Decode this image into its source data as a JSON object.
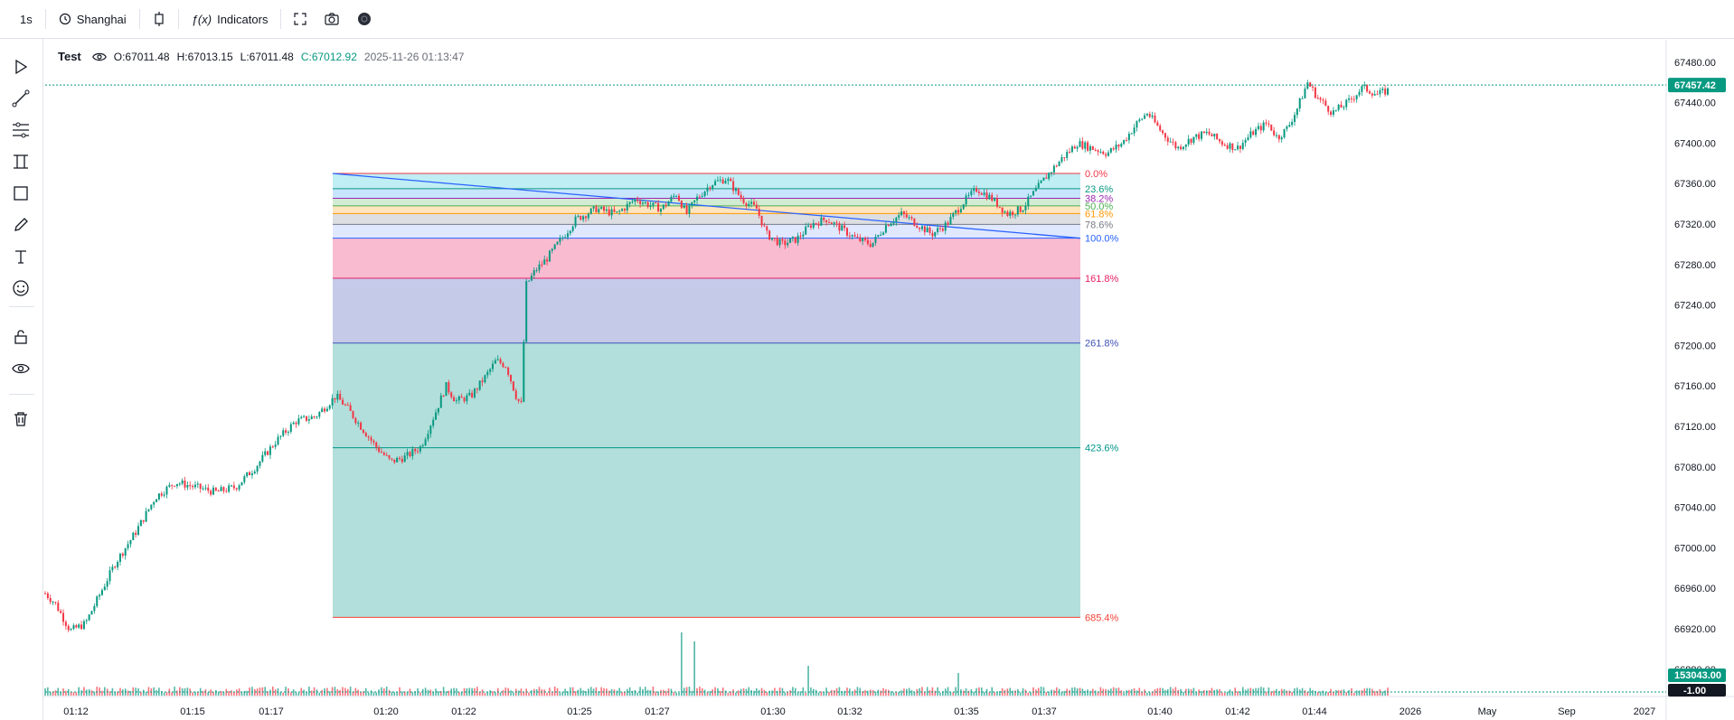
{
  "toolbar": {
    "interval": "1s",
    "timezone": "Shanghai",
    "indicators_label": "Indicators",
    "fx_label": "ƒ(x)"
  },
  "legend": {
    "symbol": "Test",
    "open": "O:67011.48",
    "high": "H:67013.15",
    "low": "L:67011.48",
    "close": "C:67012.92",
    "timestamp": "2025-11-26 01:13:47"
  },
  "left_tools": [
    "cursor-tool",
    "trend-line-tool",
    "fib-tool",
    "pattern-tool",
    "rectangle-tool",
    "brush-tool",
    "text-tool",
    "emoji-tool",
    "lock-tool",
    "visibility-tool",
    "delete-tool"
  ],
  "chart_data": {
    "type": "candlestick",
    "y_axis": {
      "ylim": [
        66870,
        67495
      ],
      "ticks": [
        "67480.00",
        "67440.00",
        "67400.00",
        "67360.00",
        "67320.00",
        "67280.00",
        "67240.00",
        "67200.00",
        "67160.00",
        "67120.00",
        "67080.00",
        "67040.00",
        "67000.00",
        "66960.00",
        "66920.00",
        "66880.00"
      ]
    },
    "x_axis": {
      "ticks": [
        "01:12",
        "01:15",
        "01:17",
        "01:20",
        "01:22",
        "01:25",
        "01:27",
        "01:30",
        "01:32",
        "01:35",
        "01:37",
        "01:40",
        "01:42",
        "01:44",
        "2026",
        "May",
        "Sep",
        "2027"
      ]
    },
    "price_path": [
      [
        0,
        66955
      ],
      [
        2,
        66945
      ],
      [
        5,
        66918
      ],
      [
        8,
        66925
      ],
      [
        10,
        66945
      ],
      [
        14,
        66985
      ],
      [
        18,
        67015
      ],
      [
        22,
        67050
      ],
      [
        26,
        67065
      ],
      [
        30,
        67060
      ],
      [
        34,
        67055
      ],
      [
        38,
        67060
      ],
      [
        42,
        67080
      ],
      [
        46,
        67105
      ],
      [
        50,
        67125
      ],
      [
        54,
        67130
      ],
      [
        58,
        67150
      ],
      [
        60,
        67140
      ],
      [
        63,
        67120
      ],
      [
        66,
        67100
      ],
      [
        69,
        67085
      ],
      [
        72,
        67090
      ],
      [
        75,
        67100
      ],
      [
        78,
        67135
      ],
      [
        80,
        67160
      ],
      [
        82,
        67145
      ],
      [
        85,
        67150
      ],
      [
        88,
        67170
      ],
      [
        90,
        67185
      ],
      [
        92,
        67180
      ],
      [
        94,
        67150
      ],
      [
        95,
        67140
      ],
      [
        96,
        67260
      ],
      [
        98,
        67275
      ],
      [
        100,
        67285
      ],
      [
        103,
        67305
      ],
      [
        106,
        67325
      ],
      [
        110,
        67335
      ],
      [
        114,
        67330
      ],
      [
        118,
        67345
      ],
      [
        120,
        67340
      ],
      [
        123,
        67335
      ],
      [
        126,
        67350
      ],
      [
        128,
        67330
      ],
      [
        130,
        67345
      ],
      [
        133,
        67360
      ],
      [
        136,
        67365
      ],
      [
        139,
        67345
      ],
      [
        142,
        67335
      ],
      [
        144,
        67310
      ],
      [
        147,
        67300
      ],
      [
        150,
        67305
      ],
      [
        153,
        67320
      ],
      [
        156,
        67325
      ],
      [
        159,
        67315
      ],
      [
        162,
        67305
      ],
      [
        165,
        67300
      ],
      [
        168,
        67320
      ],
      [
        171,
        67330
      ],
      [
        174,
        67320
      ],
      [
        177,
        67310
      ],
      [
        180,
        67320
      ],
      [
        183,
        67340
      ],
      [
        186,
        67355
      ],
      [
        189,
        67345
      ],
      [
        192,
        67330
      ],
      [
        195,
        67335
      ],
      [
        198,
        67355
      ],
      [
        200,
        67368
      ],
      [
        203,
        67385
      ],
      [
        206,
        67400
      ],
      [
        209,
        67395
      ],
      [
        212,
        67390
      ],
      [
        215,
        67400
      ],
      [
        218,
        67420
      ],
      [
        220,
        67430
      ],
      [
        223,
        67410
      ],
      [
        226,
        67395
      ],
      [
        229,
        67405
      ],
      [
        232,
        67410
      ],
      [
        235,
        67400
      ],
      [
        238,
        67395
      ],
      [
        241,
        67410
      ],
      [
        244,
        67420
      ],
      [
        246,
        67405
      ],
      [
        248,
        67415
      ],
      [
        250,
        67435
      ],
      [
        252,
        67460
      ],
      [
        254,
        67445
      ],
      [
        257,
        67430
      ],
      [
        260,
        67440
      ],
      [
        263,
        67455
      ],
      [
        266,
        67448
      ],
      [
        268,
        67452
      ]
    ],
    "last_price": "67457.42",
    "volume_label": "153043.00",
    "volume_change": "-1.00",
    "fibonacci": {
      "levels": [
        {
          "label": "0.0%",
          "value": 67370,
          "color": "#f23645",
          "fill": "rgba(242,54,69,0.25)"
        },
        {
          "label": "23.6%",
          "value": 67354.9,
          "color": "#089981",
          "fill": "rgba(0,188,212,0.25)"
        },
        {
          "label": "38.2%",
          "value": 67345.5,
          "color": "#9c27b0",
          "fill": "rgba(33,150,243,0.25)"
        },
        {
          "label": "50.0%",
          "value": 67338,
          "color": "#4caf50",
          "fill": "rgba(76,175,80,0.25)"
        },
        {
          "label": "61.8%",
          "value": 67330.4,
          "color": "#ff9800",
          "fill": "rgba(255,152,0,0.25)"
        },
        {
          "label": "78.6%",
          "value": 67319.7,
          "color": "#787b86",
          "fill": "rgba(120,123,134,0.25)"
        },
        {
          "label": "100.0%",
          "value": 67306,
          "color": "#2962ff",
          "fill": "rgba(41,98,255,0.15)"
        },
        {
          "label": "161.8%",
          "value": 67266.4,
          "color": "#e91e63",
          "fill": "rgba(233,30,99,0.3)"
        },
        {
          "label": "261.8%",
          "value": 67202.4,
          "color": "#3f51b5",
          "fill": "rgba(63,81,181,0.3)"
        },
        {
          "label": "423.6%",
          "value": 67098.9,
          "color": "#009688",
          "fill": "rgba(0,150,136,0.3)"
        },
        {
          "label": "685.4%",
          "value": 66931.3,
          "color": "#f44336",
          "fill": "rgba(0,150,136,0.3)"
        }
      ]
    }
  },
  "colors": {
    "up": "#089981",
    "down": "#f23645",
    "accent": "#089981"
  }
}
